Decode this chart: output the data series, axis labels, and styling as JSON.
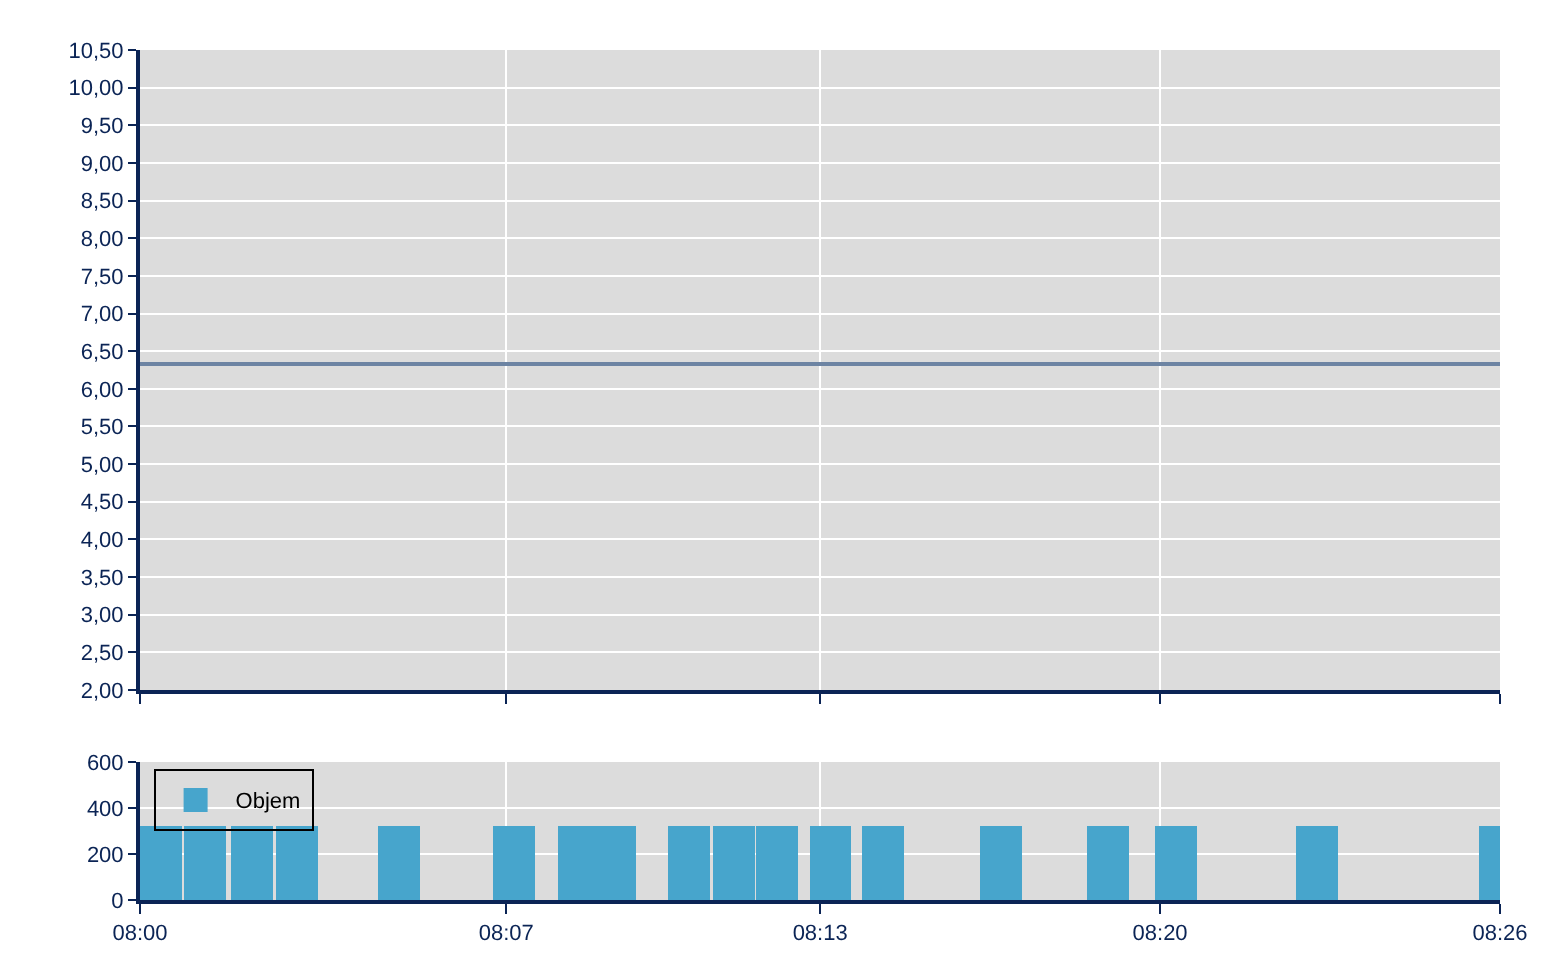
{
  "chart_data": [
    {
      "type": "line",
      "x": [
        8,
        8.4333
      ],
      "series": [
        {
          "color": "#6d84a3",
          "values": [
            6.33,
            6.33
          ]
        }
      ],
      "xlim": [
        8,
        8.4333
      ],
      "xticks": [
        {
          "value": 8,
          "label": null
        },
        {
          "value": 8.1167,
          "label": null
        },
        {
          "value": 8.2167,
          "label": null
        },
        {
          "value": 8.325,
          "label": null
        },
        {
          "value": 8.4333,
          "label": null
        }
      ],
      "ylim": [
        2,
        10.5
      ],
      "yticks": [
        {
          "value": 2,
          "label": "2,00"
        },
        {
          "value": 2.5,
          "label": "2,50"
        },
        {
          "value": 3,
          "label": "3,00"
        },
        {
          "value": 3.5,
          "label": "3,50"
        },
        {
          "value": 4,
          "label": "4,00"
        },
        {
          "value": 4.5,
          "label": "4,50"
        },
        {
          "value": 5,
          "label": "5,00"
        },
        {
          "value": 5.5,
          "label": "5,50"
        },
        {
          "value": 6,
          "label": "6,00"
        },
        {
          "value": 6.5,
          "label": "6,50"
        },
        {
          "value": 7,
          "label": "7,00"
        },
        {
          "value": 7.5,
          "label": "7,50"
        },
        {
          "value": 8,
          "label": "8,00"
        },
        {
          "value": 8.5,
          "label": "8,50"
        },
        {
          "value": 9,
          "label": "9,00"
        },
        {
          "value": 9.5,
          "label": "9,50"
        },
        {
          "value": 10,
          "label": "10,00"
        },
        {
          "value": 10.5,
          "label": "10,50"
        }
      ],
      "grid": true,
      "tick_labels": "y"
    },
    {
      "type": "bar",
      "x": [
        8.0067,
        8.0208,
        8.0358,
        8.05,
        8.0825,
        8.1192,
        8.1398,
        8.1513,
        8.175,
        8.1892,
        8.203,
        8.22,
        8.2367,
        8.2743,
        8.3083,
        8.33,
        8.375,
        8.4333
      ],
      "series": [
        {
          "name": "Objem",
          "color": "#47a5cc",
          "values": [
            320,
            320,
            320,
            320,
            320,
            320,
            320,
            320,
            320,
            320,
            320,
            320,
            320,
            320,
            320,
            320,
            320,
            320
          ]
        }
      ],
      "xlim": [
        8,
        8.4333
      ],
      "xticks": [
        {
          "value": 8,
          "label": "08:00"
        },
        {
          "value": 8.1167,
          "label": "08:07"
        },
        {
          "value": 8.2167,
          "label": "08:13"
        },
        {
          "value": 8.325,
          "label": "08:20"
        },
        {
          "value": 8.4333,
          "label": "08:26"
        }
      ],
      "ylim": [
        0,
        600
      ],
      "yticks": [
        0,
        200,
        400,
        600
      ],
      "grid": true,
      "legend": "top left"
    }
  ]
}
